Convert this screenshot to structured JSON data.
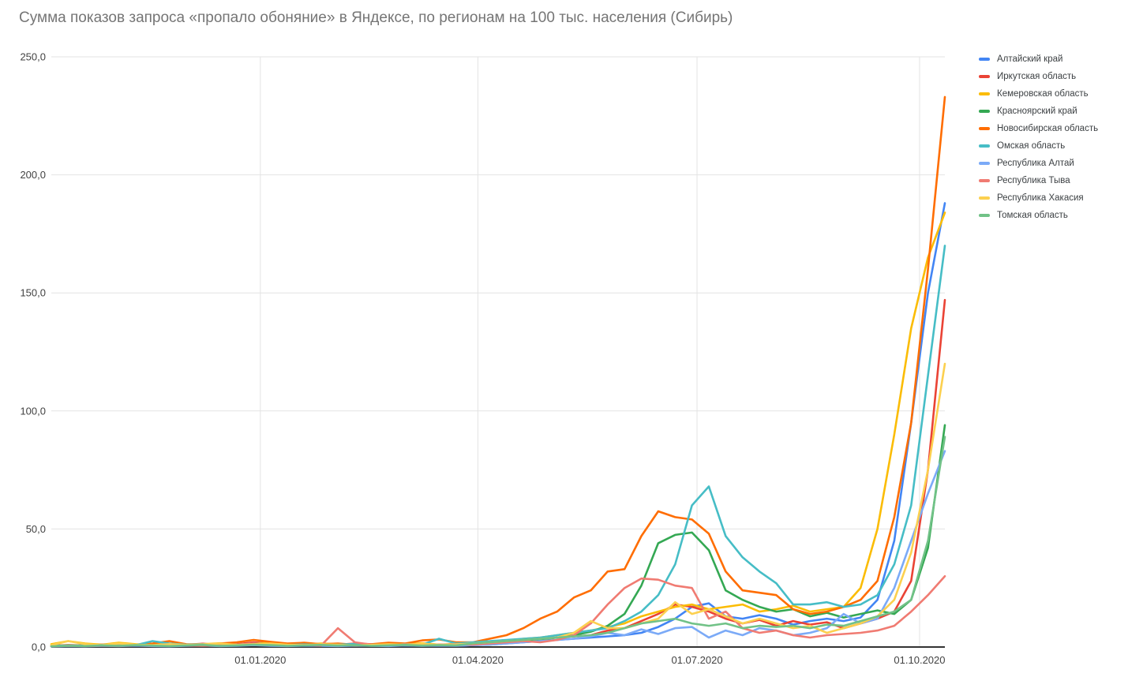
{
  "title": "Сумма показов запроса «пропало обоняние» в Яндексе, по регионам на 100 тыс. населения (Сибирь)",
  "colors": {
    "background": "#ffffff",
    "title_text": "#757575",
    "axis_text": "#424242",
    "gridline": "#e3e3e3",
    "axis_line": "#333333",
    "legend_text": "#3c4043"
  },
  "chart_data": {
    "type": "line",
    "title": "Сумма показов запроса «пропало обоняние» в Яндексе, по регионам на 100 тыс. населения (Сибирь)",
    "xlabel": "",
    "ylabel": "",
    "grid": true,
    "legend_position": "right",
    "ylim": [
      0,
      250
    ],
    "n_points": 54,
    "x_unit": "week (weekly points, ~06.10.2019 – ~11.10.2020)",
    "y_ticks": [
      {
        "value": 0,
        "label": "0,0"
      },
      {
        "value": 50,
        "label": "50,0"
      },
      {
        "value": 100,
        "label": "100,0"
      },
      {
        "value": 150,
        "label": "150,0"
      },
      {
        "value": 200,
        "label": "200,0"
      },
      {
        "value": 250,
        "label": "250,0"
      }
    ],
    "x_ticks": [
      {
        "week": 12.4,
        "label": "01.01.2020"
      },
      {
        "week": 25.3,
        "label": "01.04.2020"
      },
      {
        "week": 38.3,
        "label": "01.07.2020"
      },
      {
        "week": 51.5,
        "label": "01.10.2020"
      }
    ],
    "series": [
      {
        "name": "Алтайский край",
        "color": "#4285F4",
        "values": [
          0.3,
          0.5,
          0.4,
          0.6,
          0.5,
          0.8,
          0.6,
          0.5,
          0.9,
          0.7,
          0.5,
          0.8,
          1.0,
          0.7,
          0.5,
          0.6,
          0.8,
          0.5,
          0.7,
          0.6,
          0.9,
          0.7,
          0.5,
          0.8,
          0.6,
          0.8,
          1.0,
          1.5,
          2.0,
          2.5,
          3.0,
          3.5,
          4.0,
          4.5,
          5.0,
          6.0,
          8.5,
          12.0,
          17.0,
          18.5,
          13.0,
          12.0,
          13.5,
          12.0,
          9.5,
          11.0,
          12.0,
          11.0,
          12.5,
          20.0,
          45.0,
          95.0,
          150.0,
          188.0
        ]
      },
      {
        "name": "Иркутская область",
        "color": "#EA4335",
        "values": [
          0.5,
          0.8,
          0.6,
          1.0,
          0.7,
          0.9,
          1.2,
          0.8,
          1.0,
          1.4,
          0.9,
          1.2,
          2.0,
          1.5,
          1.0,
          1.2,
          0.8,
          1.0,
          1.5,
          1.2,
          0.9,
          1.1,
          1.4,
          1.0,
          1.2,
          1.5,
          2.0,
          2.5,
          3.0,
          3.5,
          4.0,
          4.5,
          5.0,
          7.0,
          8.0,
          11.0,
          14.0,
          18.0,
          17.0,
          15.0,
          12.0,
          10.0,
          11.5,
          9.0,
          11.0,
          9.5,
          10.5,
          8.0,
          10.0,
          12.0,
          15.0,
          28.0,
          75.0,
          147.0
        ]
      },
      {
        "name": "Кемеровская область",
        "color": "#FBBC04",
        "values": [
          1.2,
          2.5,
          1.5,
          1.0,
          1.8,
          1.2,
          0.9,
          1.5,
          1.0,
          1.2,
          1.6,
          1.0,
          1.4,
          1.8,
          1.2,
          1.0,
          1.5,
          1.2,
          0.8,
          1.0,
          1.4,
          1.2,
          1.6,
          1.0,
          1.3,
          1.5,
          2.0,
          2.5,
          3.5,
          4.0,
          5.0,
          6.0,
          7.0,
          8.5,
          10.0,
          13.0,
          15.0,
          17.0,
          18.0,
          16.0,
          17.0,
          18.0,
          15.0,
          16.0,
          17.5,
          15.0,
          16.0,
          17.0,
          25.0,
          50.0,
          90.0,
          135.0,
          165.0,
          184.0
        ]
      },
      {
        "name": "Красноярский край",
        "color": "#34A853",
        "values": [
          0.4,
          0.6,
          0.5,
          0.8,
          0.6,
          0.9,
          0.7,
          0.5,
          0.8,
          1.0,
          0.6,
          0.8,
          1.2,
          0.9,
          0.6,
          0.8,
          1.0,
          0.7,
          0.9,
          0.6,
          0.8,
          1.0,
          0.7,
          0.9,
          0.8,
          1.0,
          1.5,
          2.0,
          2.5,
          3.0,
          4.0,
          5.0,
          6.5,
          9.0,
          14.0,
          26.0,
          44.0,
          47.5,
          48.5,
          41.0,
          24.0,
          20.0,
          17.0,
          15.0,
          16.0,
          13.0,
          14.5,
          12.5,
          14.0,
          15.5,
          14.0,
          20.0,
          42.0,
          94.0
        ]
      },
      {
        "name": "Новосибирская область",
        "color": "#FF6D01",
        "values": [
          0.6,
          0.8,
          0.7,
          1.0,
          1.2,
          0.8,
          1.5,
          2.5,
          1.2,
          1.0,
          1.5,
          2.0,
          3.0,
          2.2,
          1.5,
          1.8,
          1.2,
          1.5,
          1.0,
          1.2,
          1.8,
          1.5,
          2.8,
          3.2,
          2.0,
          2.0,
          3.5,
          5.0,
          8.0,
          12.0,
          15.0,
          21.0,
          24.0,
          32.0,
          33.0,
          47.0,
          57.5,
          55.0,
          54.0,
          48.0,
          32.0,
          24.0,
          23.0,
          22.0,
          16.0,
          14.0,
          15.0,
          17.0,
          20.0,
          28.0,
          55.0,
          95.0,
          160.0,
          233.0
        ]
      },
      {
        "name": "Омская область",
        "color": "#46BDC6",
        "values": [
          0.5,
          0.7,
          0.6,
          0.9,
          1.2,
          0.8,
          2.5,
          1.5,
          1.0,
          1.2,
          0.8,
          1.0,
          1.5,
          1.2,
          0.9,
          1.1,
          0.8,
          1.0,
          1.3,
          1.0,
          0.8,
          1.2,
          1.0,
          3.5,
          1.5,
          2.0,
          2.5,
          3.0,
          3.5,
          4.0,
          5.0,
          6.0,
          7.0,
          8.0,
          11.0,
          15.0,
          22.0,
          35.0,
          60.0,
          68.0,
          47.0,
          38.0,
          32.0,
          27.0,
          18.0,
          18.0,
          19.0,
          17.0,
          18.0,
          22.0,
          35.0,
          60.0,
          115.0,
          170.0
        ]
      },
      {
        "name": "Республика Алтай",
        "color": "#7BAAF7",
        "values": [
          0.2,
          0.4,
          0.3,
          0.5,
          0.4,
          0.6,
          0.4,
          0.3,
          0.5,
          0.6,
          0.4,
          0.5,
          0.8,
          0.5,
          0.4,
          0.6,
          0.5,
          0.4,
          0.6,
          0.5,
          0.4,
          0.7,
          0.5,
          0.6,
          0.5,
          0.8,
          1.0,
          1.5,
          2.0,
          2.5,
          3.0,
          3.5,
          4.5,
          6.0,
          5.0,
          7.5,
          5.5,
          8.0,
          8.5,
          4.0,
          7.0,
          5.0,
          8.0,
          7.0,
          5.0,
          6.0,
          8.0,
          14.0,
          10.0,
          12.0,
          25.0,
          45.0,
          65.0,
          83.0
        ]
      },
      {
        "name": "Республика Тыва",
        "color": "#F07B72",
        "values": [
          0.3,
          0.5,
          0.4,
          0.6,
          0.5,
          0.8,
          0.6,
          1.0,
          0.7,
          0.5,
          0.8,
          1.0,
          1.5,
          1.0,
          0.7,
          0.9,
          0.6,
          8.0,
          2.0,
          1.0,
          0.8,
          1.2,
          0.9,
          1.0,
          1.2,
          1.0,
          1.5,
          2.0,
          2.5,
          2.0,
          3.0,
          5.0,
          10.0,
          18.0,
          25.0,
          29.0,
          28.5,
          26.0,
          25.0,
          12.0,
          15.0,
          8.0,
          6.0,
          7.0,
          5.0,
          4.0,
          5.0,
          5.5,
          6.0,
          7.0,
          9.0,
          15.0,
          22.0,
          30.0
        ]
      },
      {
        "name": "Республика Хакасия",
        "color": "#FCD04F",
        "values": [
          0.8,
          2.5,
          1.2,
          0.8,
          1.5,
          1.0,
          0.8,
          1.2,
          0.9,
          1.1,
          1.5,
          0.9,
          1.2,
          1.5,
          1.0,
          0.8,
          1.2,
          1.0,
          0.7,
          0.9,
          1.2,
          1.0,
          1.4,
          0.9,
          1.1,
          1.5,
          2.0,
          2.5,
          3.0,
          3.5,
          4.0,
          6.0,
          11.0,
          8.0,
          8.0,
          10.0,
          12.0,
          19.0,
          14.0,
          16.0,
          13.0,
          10.0,
          12.0,
          10.0,
          8.0,
          9.0,
          6.0,
          8.0,
          10.0,
          13.0,
          20.0,
          40.0,
          75.0,
          120.0
        ]
      },
      {
        "name": "Томская область",
        "color": "#71C287",
        "values": [
          0.3,
          0.5,
          0.4,
          0.7,
          0.5,
          0.8,
          0.6,
          0.4,
          0.7,
          0.9,
          0.5,
          0.7,
          1.0,
          0.8,
          0.5,
          0.7,
          0.9,
          0.6,
          0.8,
          0.5,
          0.7,
          0.9,
          0.6,
          0.8,
          0.7,
          1.5,
          2.0,
          2.5,
          3.0,
          3.5,
          4.0,
          4.5,
          5.0,
          6.0,
          8.0,
          10.0,
          11.0,
          12.0,
          10.0,
          9.0,
          10.0,
          8.0,
          9.0,
          8.5,
          9.0,
          8.0,
          9.5,
          9.0,
          11.0,
          13.0,
          15.0,
          20.0,
          45.0,
          89.0
        ]
      }
    ]
  }
}
